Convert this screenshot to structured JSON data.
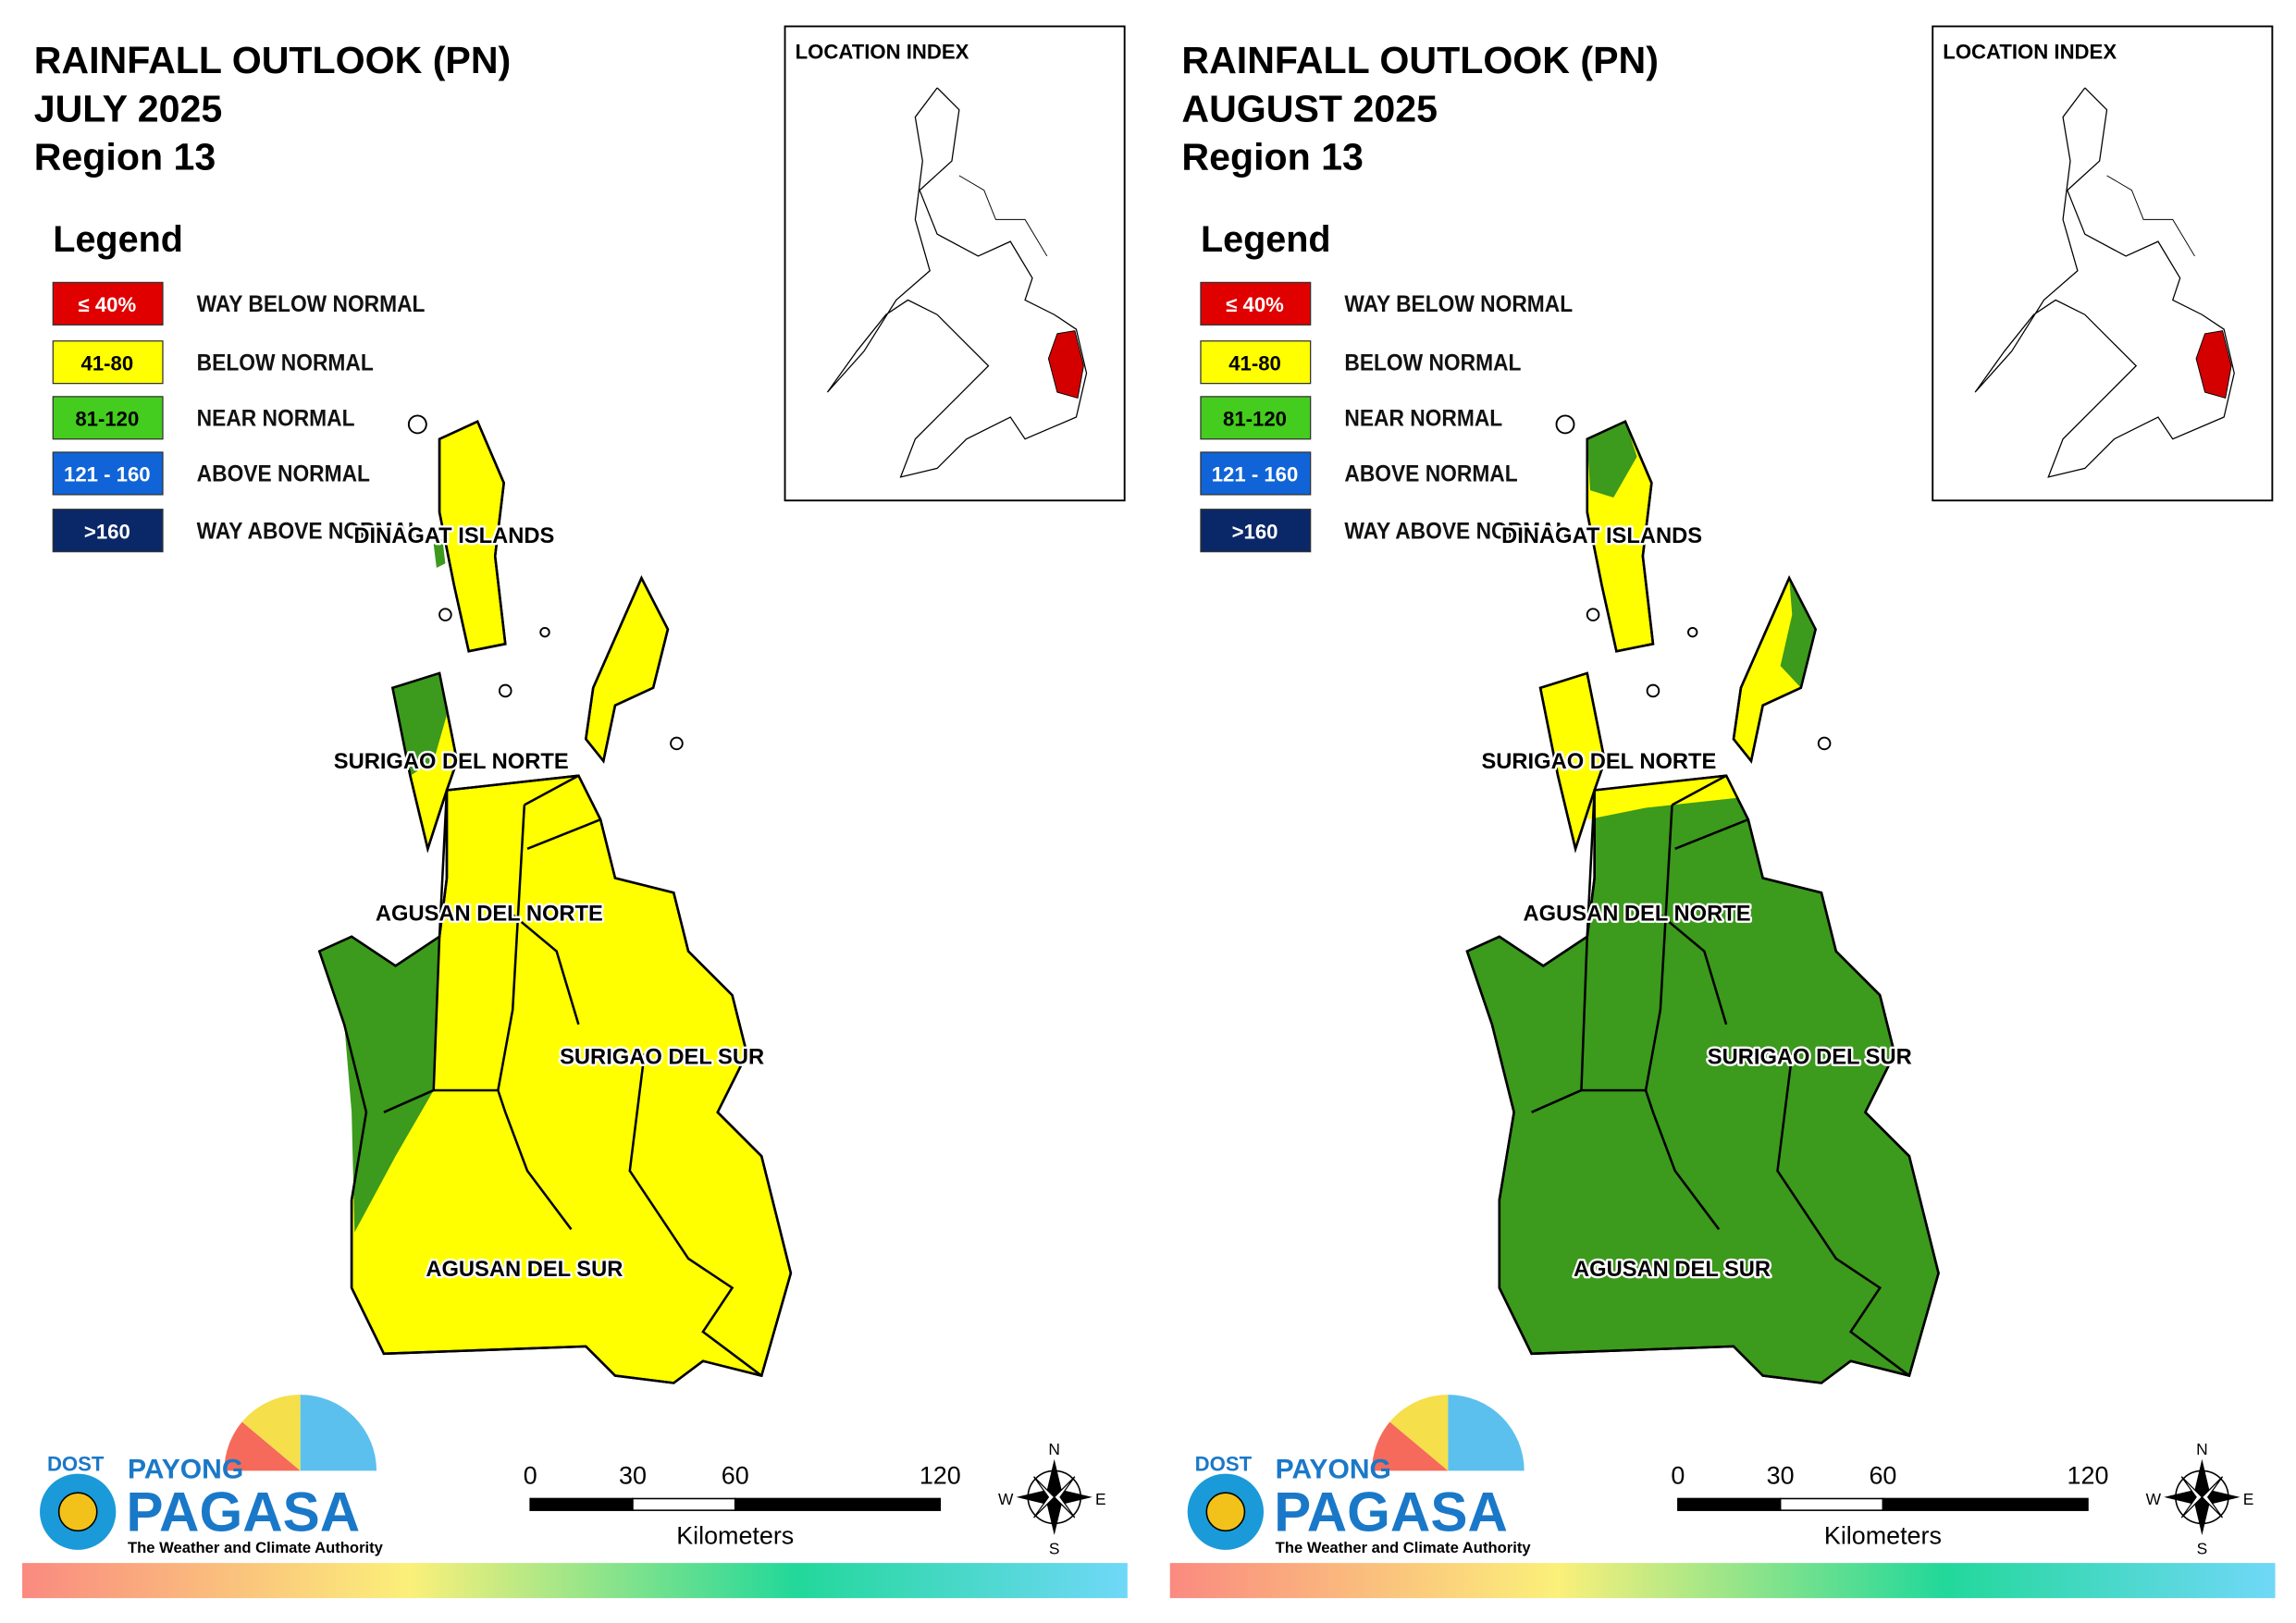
{
  "panels": [
    {
      "title": [
        "RAINFALL OUTLOOK (PN)",
        "JULY 2025",
        "Region 13"
      ],
      "legend": {
        "title": "Legend",
        "items": [
          {
            "range": "≤ 40%",
            "label": "WAY BELOW NORMAL",
            "color": "#e00000"
          },
          {
            "range": "41-80",
            "label": "BELOW NORMAL",
            "color": "#ffff00"
          },
          {
            "range": "81-120",
            "label": "NEAR NORMAL",
            "color": "#44cc1e"
          },
          {
            "range": "121 - 160",
            "label": "ABOVE NORMAL",
            "color": "#1064d8"
          },
          {
            "range": ">160",
            "label": "WAY ABOVE NORMAL",
            "color": "#0a2868"
          }
        ]
      },
      "location_index": "LOCATION INDEX",
      "provinces": [
        "DINAGAT ISLANDS",
        "SURIGAO DEL NORTE",
        "AGUSAN DEL NORTE",
        "SURIGAO DEL SUR",
        "AGUSAN DEL SUR"
      ],
      "scale_bar": {
        "ticks": [
          0,
          30,
          60,
          120
        ],
        "unit": "Kilometers"
      },
      "compass": [
        "N",
        "E",
        "S",
        "W"
      ],
      "logo": {
        "agency": "DOST",
        "brand_top": "PAYONG",
        "brand": "PAGASA",
        "tagline": "The Weather and Climate Authority"
      }
    },
    {
      "title": [
        "RAINFALL OUTLOOK (PN)",
        "AUGUST 2025",
        "Region 13"
      ],
      "legend": {
        "title": "Legend",
        "items": [
          {
            "range": "≤ 40%",
            "label": "WAY BELOW NORMAL",
            "color": "#e00000"
          },
          {
            "range": "41-80",
            "label": "BELOW NORMAL",
            "color": "#ffff00"
          },
          {
            "range": "81-120",
            "label": "NEAR NORMAL",
            "color": "#44cc1e"
          },
          {
            "range": "121 - 160",
            "label": "ABOVE NORMAL",
            "color": "#1064d8"
          },
          {
            "range": ">160",
            "label": "WAY ABOVE NORMAL",
            "color": "#0a2868"
          }
        ]
      },
      "location_index": "LOCATION INDEX",
      "provinces": [
        "DINAGAT ISLANDS",
        "SURIGAO DEL NORTE",
        "AGUSAN DEL NORTE",
        "SURIGAO DEL SUR",
        "AGUSAN DEL SUR"
      ],
      "scale_bar": {
        "ticks": [
          0,
          30,
          60,
          120
        ],
        "unit": "Kilometers"
      },
      "compass": [
        "N",
        "E",
        "S",
        "W"
      ],
      "logo": {
        "agency": "DOST",
        "brand_top": "PAYONG",
        "brand": "PAGASA",
        "tagline": "The Weather and Climate Authority"
      }
    }
  ]
}
